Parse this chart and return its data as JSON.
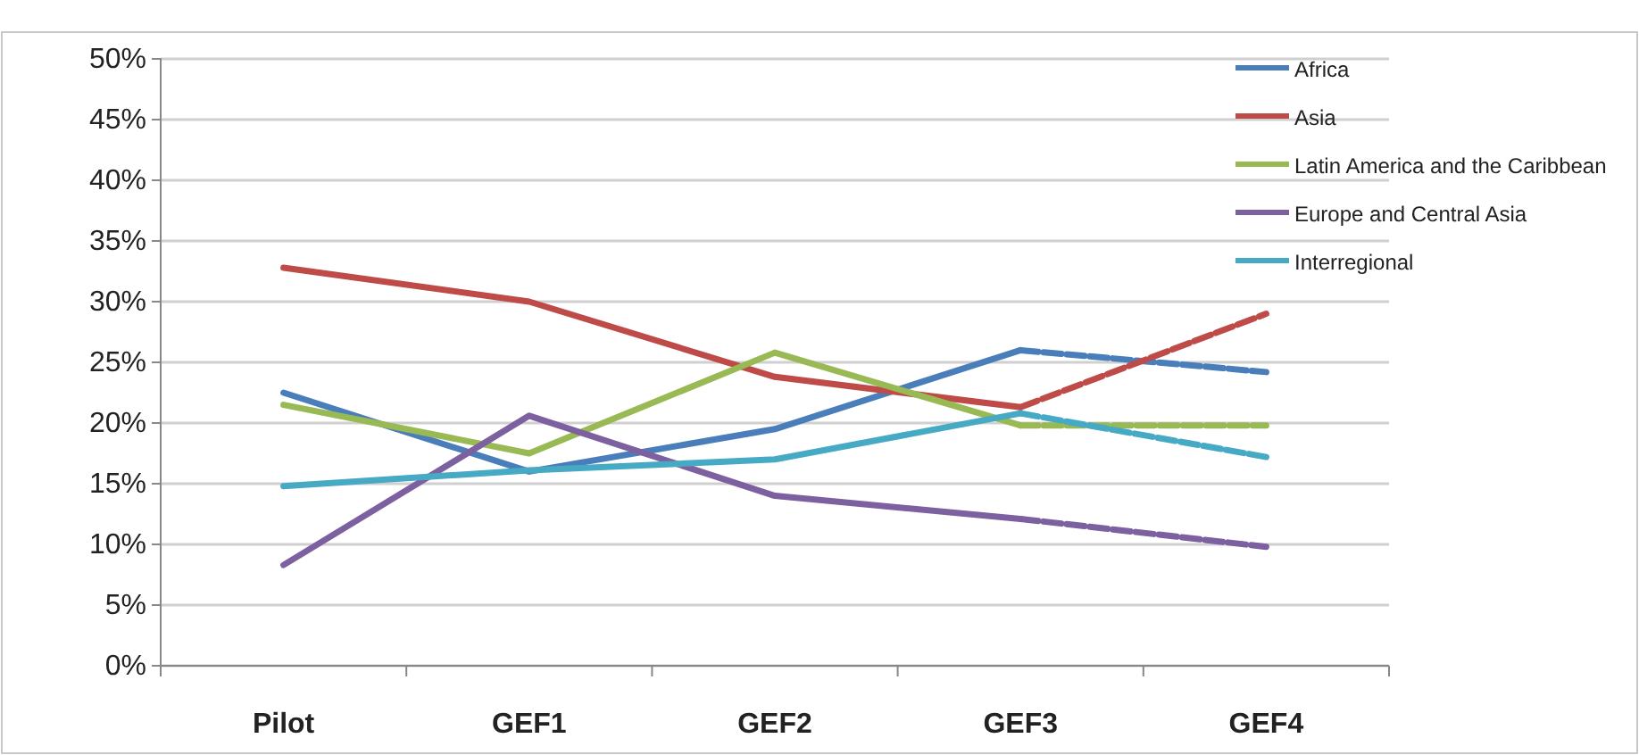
{
  "chart_data": {
    "type": "line",
    "categories": [
      "Pilot",
      "GEF1",
      "GEF2",
      "GEF3",
      "GEF4"
    ],
    "series": [
      {
        "name": "Africa",
        "color": "#4a7ebb",
        "values": [
          22.5,
          16,
          19.5,
          26,
          null
        ],
        "line_style": "solid"
      },
      {
        "color": "#4a7ebb",
        "values": [
          null,
          null,
          null,
          26,
          24.2
        ],
        "line_style": "dashed"
      },
      {
        "name": "Asia",
        "color": "#be4b48",
        "values": [
          32.8,
          30,
          23.8,
          21.3,
          null
        ],
        "line_style": "solid"
      },
      {
        "color": "#be4b48",
        "values": [
          null,
          null,
          null,
          21.3,
          29
        ],
        "line_style": "dashed"
      },
      {
        "name": "Latin America and the Caribbean",
        "color": "#98b954",
        "values": [
          21.5,
          17.5,
          25.8,
          19.8,
          null
        ],
        "line_style": "solid"
      },
      {
        "color": "#98b954",
        "values": [
          null,
          null,
          null,
          19.8,
          19.8
        ],
        "line_style": "dashed"
      },
      {
        "name": "Europe and Central Asia",
        "color": "#7d60a0",
        "values": [
          8.3,
          20.6,
          14,
          12.1,
          null
        ],
        "line_style": "solid"
      },
      {
        "color": "#7d60a0",
        "values": [
          null,
          null,
          null,
          12.1,
          9.8
        ],
        "line_style": "dashed"
      },
      {
        "name": "Interregional",
        "color": "#46aac5",
        "values": [
          14.8,
          16.1,
          17,
          20.8,
          null
        ],
        "line_style": "solid"
      },
      {
        "color": "#46aac5",
        "values": [
          null,
          null,
          null,
          20.8,
          17.2
        ],
        "line_style": "dashed"
      }
    ],
    "ylim": [
      0,
      50
    ],
    "yticks": [
      {
        "value": 0,
        "label": "0%"
      },
      {
        "value": 5,
        "label": "5%"
      },
      {
        "value": 10,
        "label": "10%"
      },
      {
        "value": 15,
        "label": "15%"
      },
      {
        "value": 20,
        "label": "20%"
      },
      {
        "value": 25,
        "label": "25%"
      },
      {
        "value": 30,
        "label": "30%"
      },
      {
        "value": 35,
        "label": "35%"
      },
      {
        "value": 40,
        "label": "40%"
      },
      {
        "value": 45,
        "label": "45%"
      },
      {
        "value": 50,
        "label": "50%"
      }
    ],
    "grid": "y",
    "legend": "right",
    "marker": "none"
  }
}
